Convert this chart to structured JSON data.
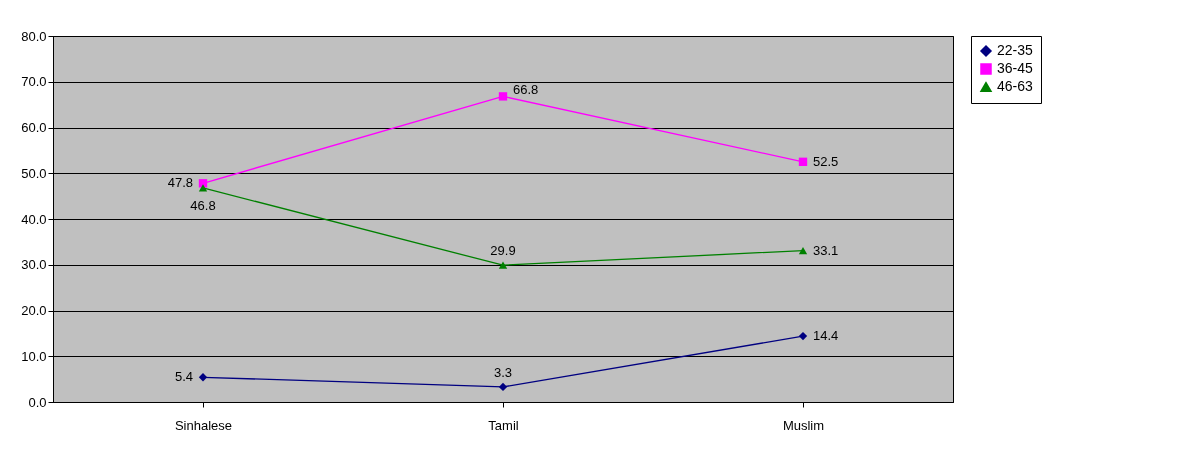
{
  "chart_data": {
    "type": "line",
    "categories": [
      "Sinhalese",
      "Tamil",
      "Muslim"
    ],
    "series": [
      {
        "name": "22-35",
        "color": "#000080",
        "marker": "diamond",
        "values": [
          5.4,
          3.3,
          14.4
        ]
      },
      {
        "name": "36-45",
        "color": "#ff00ff",
        "marker": "square",
        "values": [
          47.8,
          66.8,
          52.5
        ]
      },
      {
        "name": "46-63",
        "color": "#008000",
        "marker": "triangle",
        "values": [
          46.8,
          29.9,
          33.1
        ]
      }
    ],
    "ylim": [
      0,
      80
    ],
    "yticks": [
      {
        "value": 0,
        "label": "0.0"
      },
      {
        "value": 10,
        "label": "10.0"
      },
      {
        "value": 20,
        "label": "20.0"
      },
      {
        "value": 30,
        "label": "30.0"
      },
      {
        "value": 40,
        "label": "40.0"
      },
      {
        "value": 50,
        "label": "50.0"
      },
      {
        "value": 60,
        "label": "60.0"
      },
      {
        "value": 70,
        "label": "70.0"
      },
      {
        "value": 80,
        "label": "80.0"
      }
    ],
    "grid": "y",
    "legend": "right",
    "data_labels": true,
    "line_style": "solid"
  }
}
